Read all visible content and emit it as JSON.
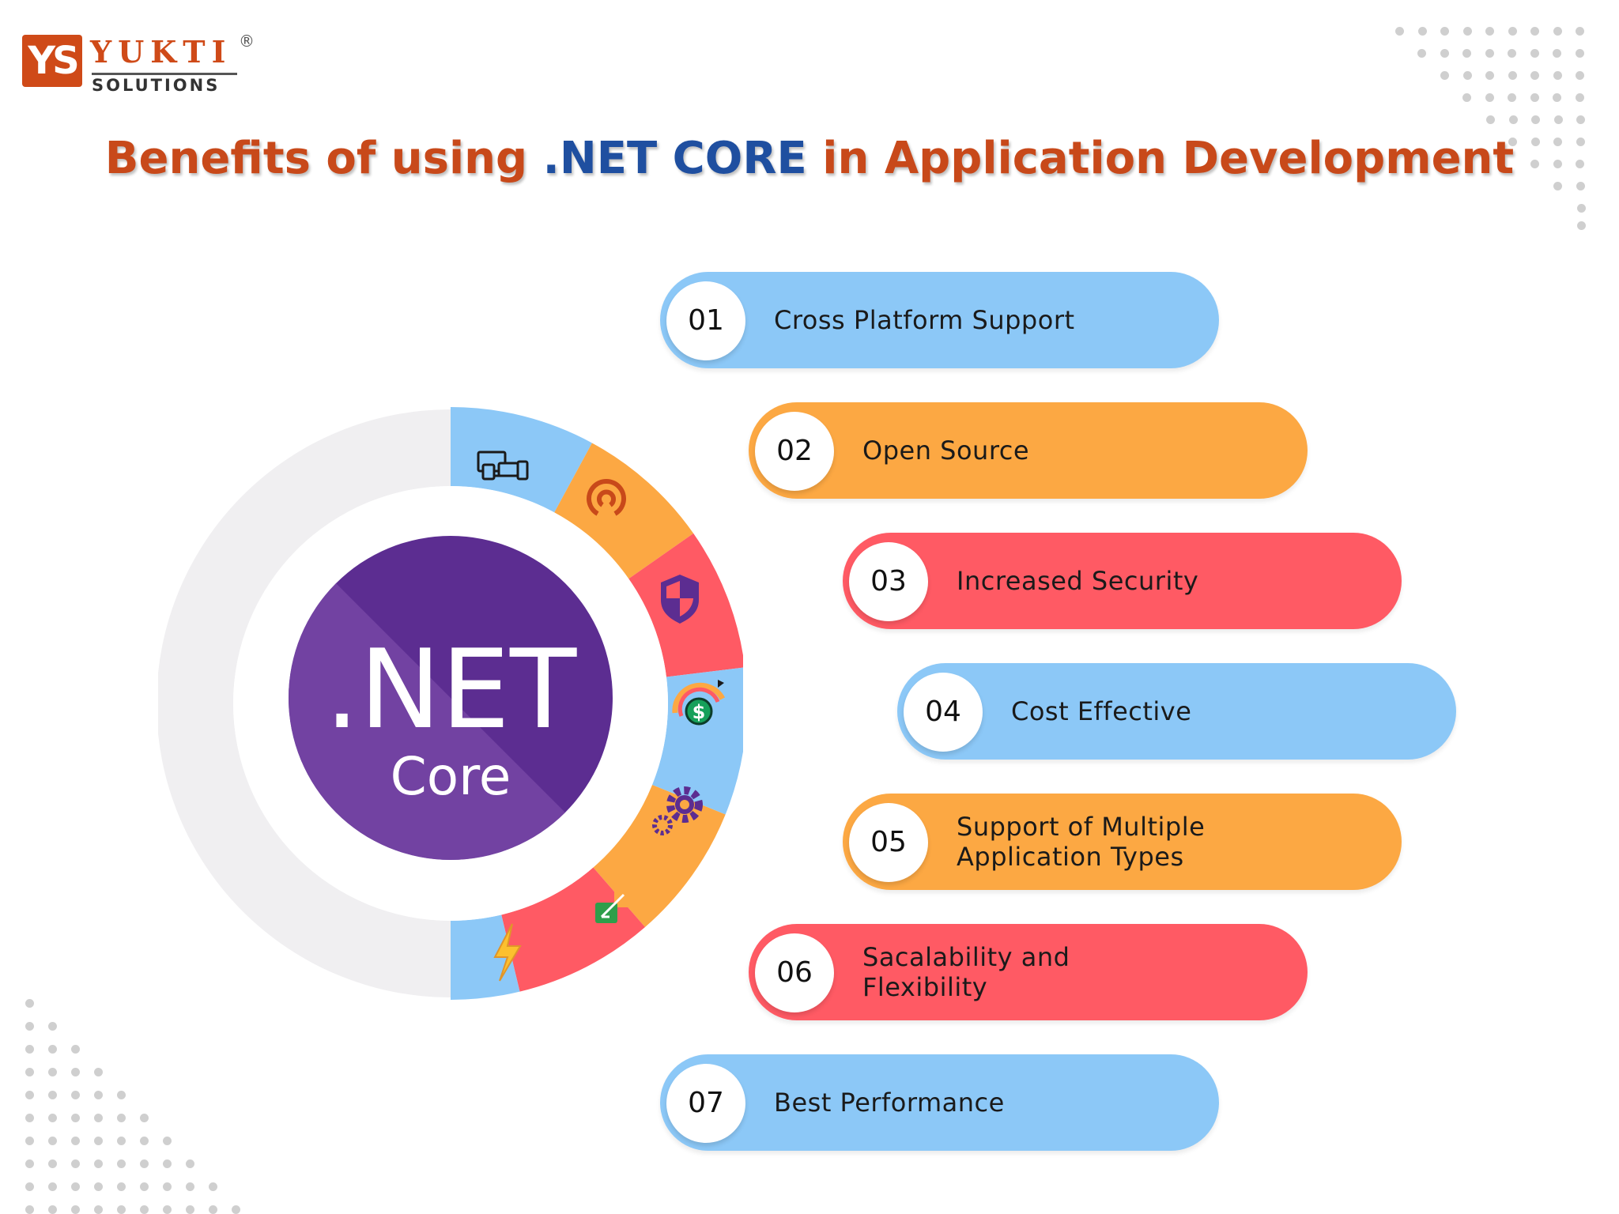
{
  "logo": {
    "mark": "YS",
    "name": "YUKTI",
    "registered": "®",
    "subtitle": "SOLUTIONS"
  },
  "title": {
    "before": "Benefits of using ",
    "highlight": ".NET CORE",
    "after": " in Application Development"
  },
  "center": {
    "net": ".NET",
    "core": "Core"
  },
  "colors": {
    "blue": "#8cc8f7",
    "orange": "#fca843",
    "red": "#ff5a64",
    "purple": "#5c2d91",
    "title": "#c8491a",
    "title_highlight": "#1f4fa0"
  },
  "wheel_segments": [
    {
      "icon": "devices-icon",
      "color": "#8cc8f7"
    },
    {
      "icon": "open-source-icon",
      "color": "#fca843"
    },
    {
      "icon": "shield-icon",
      "color": "#ff5a64"
    },
    {
      "icon": "dollar-icon",
      "color": "#8cc8f7"
    },
    {
      "icon": "gears-icon",
      "color": "#fca843"
    },
    {
      "icon": "layers-icon",
      "color": "#ff5a64"
    },
    {
      "icon": "lightning-icon",
      "color": "#8cc8f7"
    }
  ],
  "benefits": [
    {
      "num": "01",
      "label": "Cross Platform Support",
      "color": "blue"
    },
    {
      "num": "02",
      "label": "Open Source",
      "color": "orange"
    },
    {
      "num": "03",
      "label": "Increased Security",
      "color": "red"
    },
    {
      "num": "04",
      "label": "Cost Effective",
      "color": "blue"
    },
    {
      "num": "05",
      "label": "Support of Multiple Application Types",
      "color": "orange"
    },
    {
      "num": "06",
      "label": "Sacalability and Flexibility",
      "color": "red"
    },
    {
      "num": "07",
      "label": "Best Performance",
      "color": "blue"
    }
  ]
}
